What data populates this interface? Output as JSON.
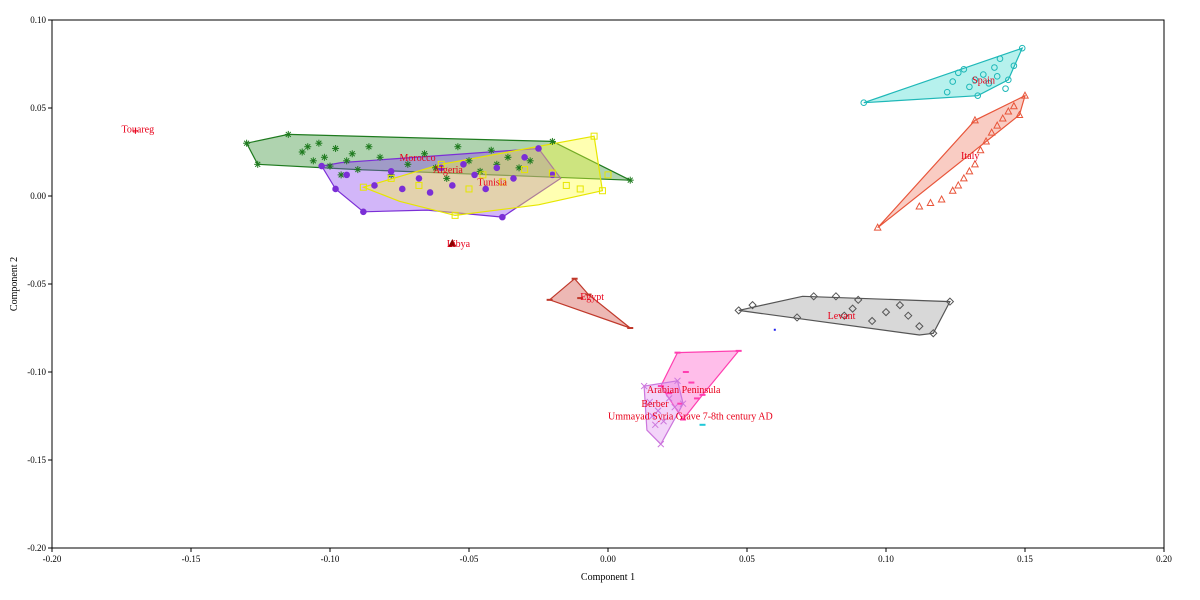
{
  "chart_data": {
    "type": "scatter",
    "xlabel": "Component 1",
    "ylabel": "Component 2",
    "xlim": [
      -0.2,
      0.2
    ],
    "ylim": [
      -0.2,
      0.1
    ],
    "xticks": [
      {
        "value": -0.2,
        "label": "-0.20"
      },
      {
        "value": -0.15,
        "label": "-0.15"
      },
      {
        "value": -0.1,
        "label": "-0.10"
      },
      {
        "value": -0.05,
        "label": "-0.05"
      },
      {
        "value": 0.0,
        "label": "0.00"
      },
      {
        "value": 0.05,
        "label": "0.05"
      },
      {
        "value": 0.1,
        "label": "0.10"
      },
      {
        "value": 0.15,
        "label": "0.15"
      },
      {
        "value": 0.2,
        "label": "0.20"
      }
    ],
    "yticks": [
      {
        "value": 0.1,
        "label": "0.10"
      },
      {
        "value": 0.05,
        "label": "0.05"
      },
      {
        "value": 0.0,
        "label": "0.00"
      },
      {
        "value": -0.05,
        "label": "-0.05"
      },
      {
        "value": -0.1,
        "label": "-0.10"
      },
      {
        "value": -0.15,
        "label": "-0.15"
      },
      {
        "value": -0.2,
        "label": "-0.20"
      }
    ],
    "groups": [
      {
        "name": "Morocco",
        "label": "Morocco",
        "label_at": [
          -0.075,
          0.02
        ],
        "marker": "asterisk",
        "color": "#1e7a1e",
        "fill": "#2e8b2e",
        "hull": [
          [
            -0.13,
            0.03
          ],
          [
            -0.115,
            0.035
          ],
          [
            -0.02,
            0.031
          ],
          [
            0.008,
            0.009
          ],
          [
            -0.09,
            0.015
          ],
          [
            -0.126,
            0.018
          ]
        ],
        "points": [
          [
            -0.13,
            0.03
          ],
          [
            -0.126,
            0.018
          ],
          [
            -0.115,
            0.035
          ],
          [
            -0.11,
            0.025
          ],
          [
            -0.108,
            0.028
          ],
          [
            -0.106,
            0.02
          ],
          [
            -0.104,
            0.03
          ],
          [
            -0.102,
            0.022
          ],
          [
            -0.1,
            0.017
          ],
          [
            -0.098,
            0.027
          ],
          [
            -0.096,
            0.012
          ],
          [
            -0.094,
            0.02
          ],
          [
            -0.092,
            0.024
          ],
          [
            -0.09,
            0.015
          ],
          [
            -0.086,
            0.028
          ],
          [
            -0.082,
            0.022
          ],
          [
            -0.078,
            0.012
          ],
          [
            -0.072,
            0.018
          ],
          [
            -0.066,
            0.024
          ],
          [
            -0.062,
            0.016
          ],
          [
            -0.058,
            0.01
          ],
          [
            -0.054,
            0.028
          ],
          [
            -0.05,
            0.02
          ],
          [
            -0.046,
            0.014
          ],
          [
            -0.042,
            0.026
          ],
          [
            -0.04,
            0.018
          ],
          [
            -0.036,
            0.022
          ],
          [
            -0.032,
            0.016
          ],
          [
            -0.028,
            0.02
          ],
          [
            -0.02,
            0.031
          ],
          [
            0.008,
            0.009
          ]
        ]
      },
      {
        "name": "Algeria",
        "label": "Algeria",
        "label_at": [
          -0.063,
          0.013
        ],
        "marker": "circle",
        "color": "#7b2fd6",
        "fill": "#8a3ff0",
        "hull": [
          [
            -0.103,
            0.017
          ],
          [
            -0.096,
            0.019
          ],
          [
            -0.025,
            0.027
          ],
          [
            -0.017,
            0.01
          ],
          [
            -0.038,
            -0.012
          ],
          [
            -0.065,
            -0.008
          ],
          [
            -0.088,
            -0.009
          ],
          [
            -0.098,
            0.004
          ]
        ],
        "points": [
          [
            -0.103,
            0.017
          ],
          [
            -0.098,
            0.004
          ],
          [
            -0.094,
            0.012
          ],
          [
            -0.088,
            -0.009
          ],
          [
            -0.084,
            0.006
          ],
          [
            -0.078,
            0.014
          ],
          [
            -0.074,
            0.004
          ],
          [
            -0.068,
            0.01
          ],
          [
            -0.064,
            0.002
          ],
          [
            -0.06,
            0.016
          ],
          [
            -0.056,
            0.006
          ],
          [
            -0.052,
            0.018
          ],
          [
            -0.048,
            0.012
          ],
          [
            -0.044,
            0.004
          ],
          [
            -0.04,
            0.016
          ],
          [
            -0.038,
            -0.012
          ],
          [
            -0.034,
            0.01
          ],
          [
            -0.03,
            0.022
          ],
          [
            -0.025,
            0.027
          ],
          [
            -0.02,
            0.012
          ]
        ]
      },
      {
        "name": "Tunisia",
        "label": "Tunisia",
        "label_at": [
          -0.047,
          0.006
        ],
        "marker": "square",
        "color": "#e6e600",
        "fill": "#ffff33",
        "hull": [
          [
            -0.088,
            0.005
          ],
          [
            -0.06,
            0.018
          ],
          [
            -0.005,
            0.034
          ],
          [
            -0.002,
            0.003
          ],
          [
            -0.025,
            -0.005
          ],
          [
            -0.055,
            -0.011
          ],
          [
            -0.075,
            -0.003
          ]
        ],
        "points": [
          [
            -0.088,
            0.005
          ],
          [
            -0.078,
            0.01
          ],
          [
            -0.068,
            0.006
          ],
          [
            -0.06,
            0.018
          ],
          [
            -0.055,
            -0.011
          ],
          [
            -0.05,
            0.004
          ],
          [
            -0.045,
            0.012
          ],
          [
            -0.038,
            0.008
          ],
          [
            -0.03,
            0.015
          ],
          [
            -0.02,
            0.013
          ],
          [
            -0.015,
            0.006
          ],
          [
            -0.01,
            0.004
          ],
          [
            -0.005,
            0.034
          ],
          [
            -0.002,
            0.003
          ],
          [
            0.0,
            0.012
          ]
        ]
      },
      {
        "name": "Libya",
        "label": "Libya",
        "label_at": [
          -0.058,
          -0.029
        ],
        "marker": "filled-triangle",
        "color": "#8b0000",
        "fill": "#8b0000",
        "hull": [],
        "points": [
          [
            -0.056,
            -0.027
          ]
        ]
      },
      {
        "name": "Touareg",
        "label": "Touareg",
        "label_at": [
          -0.175,
          0.036
        ],
        "marker": "plus",
        "color": "#e8001a",
        "fill": "#e8001a",
        "hull": [],
        "points": [
          [
            -0.17,
            0.037
          ]
        ]
      },
      {
        "name": "Egypt",
        "label": "Egypt",
        "label_at": [
          -0.01,
          -0.059
        ],
        "marker": "dash",
        "color": "#c0392b",
        "fill": "#d0453a",
        "hull": [
          [
            -0.021,
            -0.059
          ],
          [
            -0.012,
            -0.047
          ],
          [
            -0.007,
            -0.056
          ],
          [
            0.008,
            -0.075
          ]
        ],
        "points": [
          [
            -0.021,
            -0.059
          ],
          [
            -0.012,
            -0.047
          ],
          [
            -0.01,
            -0.058
          ],
          [
            -0.007,
            -0.056
          ],
          [
            0.008,
            -0.075
          ]
        ]
      },
      {
        "name": "Levant",
        "label": "Levant",
        "label_at": [
          0.079,
          -0.07
        ],
        "marker": "diamond",
        "color": "#555555",
        "fill": "#999999",
        "hull": [
          [
            0.047,
            -0.065
          ],
          [
            0.07,
            -0.057
          ],
          [
            0.123,
            -0.06
          ],
          [
            0.117,
            -0.078
          ],
          [
            0.112,
            -0.079
          ]
        ],
        "points": [
          [
            0.047,
            -0.065
          ],
          [
            0.052,
            -0.062
          ],
          [
            0.068,
            -0.069
          ],
          [
            0.074,
            -0.057
          ],
          [
            0.082,
            -0.057
          ],
          [
            0.085,
            -0.068
          ],
          [
            0.088,
            -0.064
          ],
          [
            0.09,
            -0.059
          ],
          [
            0.095,
            -0.071
          ],
          [
            0.1,
            -0.066
          ],
          [
            0.105,
            -0.062
          ],
          [
            0.108,
            -0.068
          ],
          [
            0.112,
            -0.074
          ],
          [
            0.117,
            -0.078
          ],
          [
            0.123,
            -0.06
          ]
        ]
      },
      {
        "name": "Spain",
        "label": "Spain",
        "label_at": [
          0.131,
          0.064
        ],
        "marker": "circle-open",
        "color": "#1fb8b8",
        "fill": "#3fd9d0",
        "hull": [
          [
            0.092,
            0.053
          ],
          [
            0.149,
            0.084
          ],
          [
            0.144,
            0.066
          ],
          [
            0.133,
            0.057
          ]
        ],
        "points": [
          [
            0.092,
            0.053
          ],
          [
            0.122,
            0.059
          ],
          [
            0.124,
            0.065
          ],
          [
            0.126,
            0.07
          ],
          [
            0.128,
            0.072
          ],
          [
            0.13,
            0.062
          ],
          [
            0.132,
            0.066
          ],
          [
            0.133,
            0.057
          ],
          [
            0.135,
            0.069
          ],
          [
            0.137,
            0.064
          ],
          [
            0.139,
            0.073
          ],
          [
            0.14,
            0.068
          ],
          [
            0.141,
            0.078
          ],
          [
            0.143,
            0.061
          ],
          [
            0.144,
            0.066
          ],
          [
            0.146,
            0.074
          ],
          [
            0.149,
            0.084
          ]
        ]
      },
      {
        "name": "Italy",
        "label": "Italy",
        "label_at": [
          0.127,
          0.021
        ],
        "marker": "triangle-open",
        "color": "#e8553a",
        "fill": "#f07860",
        "hull": [
          [
            0.097,
            -0.018
          ],
          [
            0.132,
            0.043
          ],
          [
            0.15,
            0.057
          ],
          [
            0.148,
            0.046
          ]
        ],
        "points": [
          [
            0.097,
            -0.018
          ],
          [
            0.112,
            -0.006
          ],
          [
            0.116,
            -0.004
          ],
          [
            0.12,
            -0.002
          ],
          [
            0.124,
            0.003
          ],
          [
            0.126,
            0.006
          ],
          [
            0.128,
            0.01
          ],
          [
            0.13,
            0.014
          ],
          [
            0.132,
            0.018
          ],
          [
            0.134,
            0.026
          ],
          [
            0.136,
            0.031
          ],
          [
            0.138,
            0.036
          ],
          [
            0.14,
            0.04
          ],
          [
            0.142,
            0.044
          ],
          [
            0.144,
            0.048
          ],
          [
            0.146,
            0.051
          ],
          [
            0.148,
            0.046
          ],
          [
            0.15,
            0.057
          ],
          [
            0.132,
            0.043
          ]
        ]
      },
      {
        "name": "Arabian Peninsula",
        "label": "Arabian Peninsula",
        "label_at": [
          0.014,
          -0.112
        ],
        "marker": "dash",
        "color": "#ff3fb0",
        "fill": "#ff55c8",
        "hull": [
          [
            0.019,
            -0.108
          ],
          [
            0.025,
            -0.089
          ],
          [
            0.047,
            -0.088
          ],
          [
            0.034,
            -0.113
          ],
          [
            0.027,
            -0.127
          ]
        ],
        "points": [
          [
            0.019,
            -0.108
          ],
          [
            0.022,
            -0.112
          ],
          [
            0.025,
            -0.089
          ],
          [
            0.026,
            -0.118
          ],
          [
            0.027,
            -0.127
          ],
          [
            0.028,
            -0.1
          ],
          [
            0.03,
            -0.106
          ],
          [
            0.032,
            -0.115
          ],
          [
            0.034,
            -0.113
          ],
          [
            0.047,
            -0.088
          ]
        ]
      },
      {
        "name": "Berber",
        "label": "Berber",
        "label_at": [
          0.012,
          -0.12
        ],
        "marker": "cross",
        "color": "#cc77dd",
        "fill": "#e08ff0",
        "hull": [
          [
            0.013,
            -0.108
          ],
          [
            0.025,
            -0.105
          ],
          [
            0.027,
            -0.118
          ],
          [
            0.019,
            -0.141
          ],
          [
            0.014,
            -0.133
          ]
        ],
        "points": [
          [
            0.013,
            -0.108
          ],
          [
            0.015,
            -0.117
          ],
          [
            0.016,
            -0.125
          ],
          [
            0.017,
            -0.13
          ],
          [
            0.018,
            -0.122
          ],
          [
            0.019,
            -0.141
          ],
          [
            0.02,
            -0.128
          ],
          [
            0.022,
            -0.115
          ],
          [
            0.024,
            -0.12
          ],
          [
            0.025,
            -0.105
          ],
          [
            0.027,
            -0.118
          ]
        ]
      },
      {
        "name": "Ummayad Syria Grave 7-8th century AD",
        "label": "Ummayad Syria Grave 7-8th century AD",
        "label_at": [
          0.0,
          -0.127
        ],
        "marker": "dash",
        "color": "#20c8d8",
        "fill": "#20c8d8",
        "hull": [],
        "points": [
          [
            0.034,
            -0.13
          ]
        ]
      }
    ],
    "extra_points": [
      {
        "x": 0.06,
        "y": -0.076,
        "color": "#2020ee"
      }
    ]
  }
}
